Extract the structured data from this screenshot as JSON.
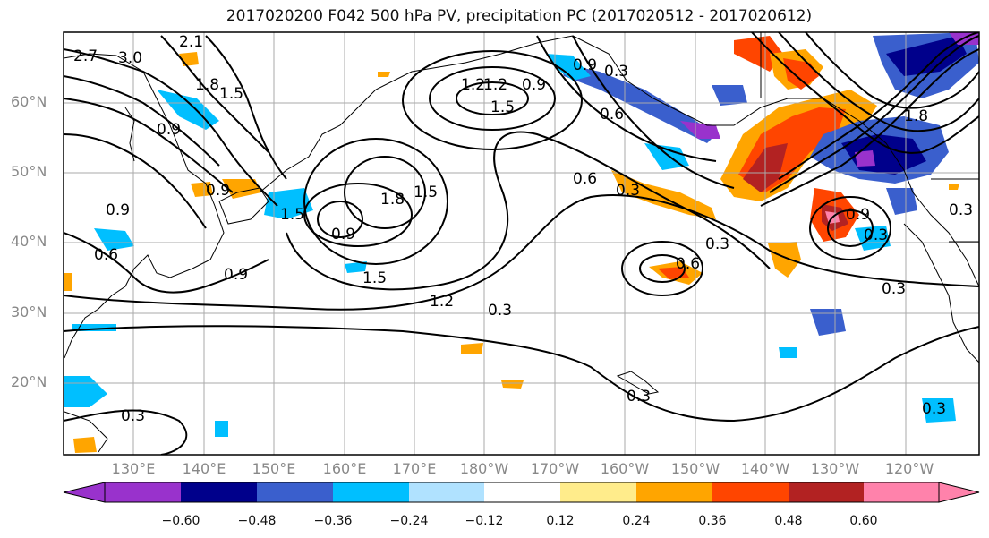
{
  "title": "2017020200 F042 500 hPa PV, precipitation PC (2017020512 - 2017020612)",
  "lat_labels": [
    "60°N",
    "50°N",
    "40°N",
    "30°N",
    "20°N"
  ],
  "lon_labels": [
    "130°E",
    "140°E",
    "150°E",
    "160°E",
    "170°E",
    "180°W",
    "170°W",
    "160°W",
    "150°W",
    "140°W",
    "130°W",
    "120°W"
  ],
  "contour_labels": [
    "2.7",
    "3.0",
    "2.1",
    "1.8",
    "1.5",
    "0.9",
    "1.2",
    "0.9",
    "1.5",
    "1.2",
    "0.9",
    "0.3",
    "0.6",
    "0.9",
    "1.8",
    "1.5",
    "1.5",
    "0.9",
    "1.5",
    "1.2",
    "0.3",
    "0.6",
    "0.3",
    "0.3",
    "0.9",
    "0.3",
    "0.3",
    "0.9",
    "0.6",
    "0.6",
    "0.3",
    "0.3",
    "0.9",
    "0.3",
    "1.8",
    "0.3"
  ],
  "colorbar": {
    "ticks": [
      "−0.60",
      "−0.48",
      "−0.36",
      "−0.24",
      "−0.12",
      "0.12",
      "0.24",
      "0.36",
      "0.48",
      "0.60"
    ],
    "colors": [
      "#9932cc",
      "#00008b",
      "#3a5fcd",
      "#00bfff",
      "#b0e2ff",
      "#ffffff",
      "#ffec8b",
      "#ffa500",
      "#ff4500",
      "#b22222",
      "#ff82ab"
    ]
  }
}
